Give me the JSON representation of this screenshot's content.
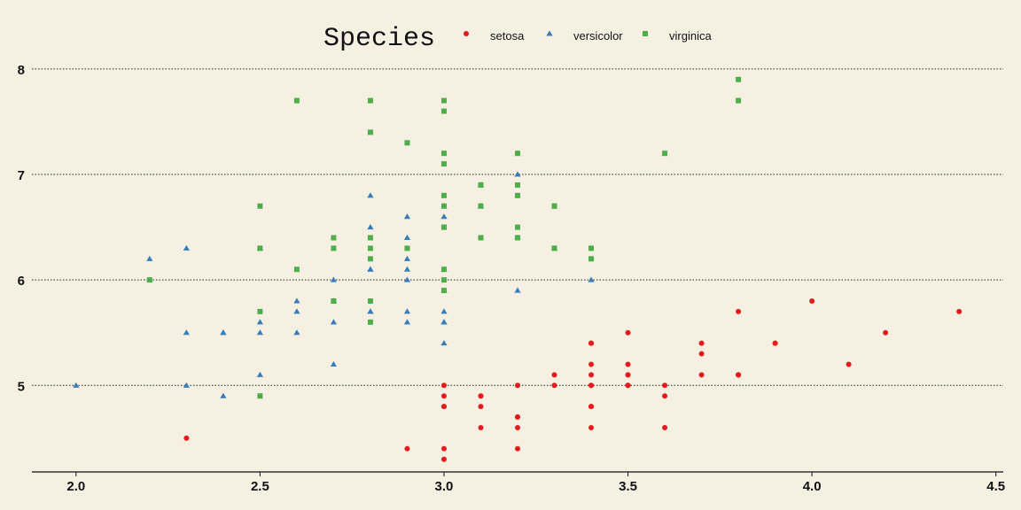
{
  "chart_data": {
    "type": "scatter",
    "legend": {
      "title": "Species",
      "position": "top",
      "entries": [
        {
          "name": "setosa",
          "color": "#e41a1c",
          "shape": "circle"
        },
        {
          "name": "versicolor",
          "color": "#377eb8",
          "shape": "triangle"
        },
        {
          "name": "virginica",
          "color": "#4daf4a",
          "shape": "square"
        }
      ]
    },
    "xlim": [
      1.88,
      4.52
    ],
    "ylim": [
      4.18,
      8.15
    ],
    "x_ticks": [
      "2.0",
      "2.5",
      "3.0",
      "3.5",
      "4.0",
      "4.5"
    ],
    "y_ticks": [
      "5",
      "6",
      "7",
      "8"
    ],
    "grid": {
      "horizontal": true,
      "style": "dotted"
    },
    "series": [
      {
        "name": "setosa",
        "points": [
          [
            3.5,
            5.1
          ],
          [
            3.0,
            4.9
          ],
          [
            3.2,
            4.7
          ],
          [
            3.1,
            4.6
          ],
          [
            3.6,
            5.0
          ],
          [
            3.9,
            5.4
          ],
          [
            3.4,
            4.6
          ],
          [
            3.4,
            5.0
          ],
          [
            2.9,
            4.4
          ],
          [
            3.1,
            4.9
          ],
          [
            3.7,
            5.4
          ],
          [
            3.4,
            4.8
          ],
          [
            3.0,
            4.8
          ],
          [
            3.0,
            4.3
          ],
          [
            4.0,
            5.8
          ],
          [
            4.4,
            5.7
          ],
          [
            3.9,
            5.4
          ],
          [
            3.5,
            5.1
          ],
          [
            3.8,
            5.7
          ],
          [
            3.8,
            5.1
          ],
          [
            3.4,
            5.4
          ],
          [
            3.7,
            5.1
          ],
          [
            3.6,
            4.6
          ],
          [
            3.3,
            5.1
          ],
          [
            3.4,
            4.8
          ],
          [
            3.0,
            5.0
          ],
          [
            3.4,
            5.0
          ],
          [
            3.5,
            5.2
          ],
          [
            3.4,
            5.2
          ],
          [
            3.2,
            4.7
          ],
          [
            3.1,
            4.8
          ],
          [
            3.4,
            5.4
          ],
          [
            4.1,
            5.2
          ],
          [
            4.2,
            5.5
          ],
          [
            3.1,
            4.9
          ],
          [
            3.2,
            5.0
          ],
          [
            3.5,
            5.5
          ],
          [
            3.6,
            4.9
          ],
          [
            3.0,
            4.4
          ],
          [
            3.4,
            5.1
          ],
          [
            3.5,
            5.0
          ],
          [
            2.3,
            4.5
          ],
          [
            3.2,
            4.4
          ],
          [
            3.5,
            5.0
          ],
          [
            3.8,
            5.1
          ],
          [
            3.0,
            4.8
          ],
          [
            3.8,
            5.1
          ],
          [
            3.2,
            4.6
          ],
          [
            3.7,
            5.3
          ],
          [
            3.3,
            5.0
          ]
        ]
      },
      {
        "name": "versicolor",
        "points": [
          [
            3.2,
            7.0
          ],
          [
            3.2,
            6.4
          ],
          [
            3.1,
            6.9
          ],
          [
            2.3,
            5.5
          ],
          [
            2.8,
            6.5
          ],
          [
            2.8,
            5.7
          ],
          [
            3.3,
            6.3
          ],
          [
            2.4,
            4.9
          ],
          [
            2.9,
            6.6
          ],
          [
            2.7,
            5.2
          ],
          [
            2.0,
            5.0
          ],
          [
            3.0,
            5.9
          ],
          [
            2.2,
            6.0
          ],
          [
            2.9,
            6.1
          ],
          [
            2.9,
            5.6
          ],
          [
            3.1,
            6.7
          ],
          [
            3.0,
            5.6
          ],
          [
            2.7,
            5.8
          ],
          [
            2.2,
            6.2
          ],
          [
            2.5,
            5.6
          ],
          [
            3.2,
            5.9
          ],
          [
            2.8,
            6.1
          ],
          [
            2.5,
            6.3
          ],
          [
            2.8,
            6.1
          ],
          [
            2.9,
            6.4
          ],
          [
            3.0,
            6.6
          ],
          [
            2.8,
            6.8
          ],
          [
            3.0,
            6.7
          ],
          [
            2.9,
            6.0
          ],
          [
            2.6,
            5.7
          ],
          [
            2.4,
            5.5
          ],
          [
            2.4,
            5.5
          ],
          [
            2.7,
            5.8
          ],
          [
            2.7,
            6.0
          ],
          [
            3.0,
            5.4
          ],
          [
            3.4,
            6.0
          ],
          [
            3.1,
            6.7
          ],
          [
            2.3,
            6.3
          ],
          [
            3.0,
            5.6
          ],
          [
            2.5,
            5.5
          ],
          [
            2.6,
            5.5
          ],
          [
            3.0,
            6.1
          ],
          [
            2.6,
            5.8
          ],
          [
            2.3,
            5.0
          ],
          [
            2.7,
            5.6
          ],
          [
            3.0,
            5.7
          ],
          [
            2.9,
            5.7
          ],
          [
            2.9,
            6.2
          ],
          [
            2.5,
            5.1
          ],
          [
            2.8,
            5.7
          ]
        ]
      },
      {
        "name": "virginica",
        "points": [
          [
            3.3,
            6.3
          ],
          [
            2.7,
            5.8
          ],
          [
            3.0,
            7.1
          ],
          [
            2.9,
            6.3
          ],
          [
            3.0,
            6.5
          ],
          [
            3.0,
            7.6
          ],
          [
            2.5,
            4.9
          ],
          [
            2.9,
            7.3
          ],
          [
            2.5,
            6.7
          ],
          [
            3.6,
            7.2
          ],
          [
            3.2,
            6.5
          ],
          [
            2.7,
            6.4
          ],
          [
            3.0,
            6.8
          ],
          [
            2.5,
            5.7
          ],
          [
            2.8,
            5.8
          ],
          [
            3.2,
            6.4
          ],
          [
            3.0,
            6.5
          ],
          [
            3.8,
            7.7
          ],
          [
            2.6,
            7.7
          ],
          [
            2.2,
            6.0
          ],
          [
            3.2,
            6.9
          ],
          [
            2.8,
            5.6
          ],
          [
            2.8,
            7.7
          ],
          [
            2.7,
            6.3
          ],
          [
            3.3,
            6.7
          ],
          [
            3.2,
            7.2
          ],
          [
            2.8,
            6.2
          ],
          [
            3.0,
            6.1
          ],
          [
            2.8,
            6.4
          ],
          [
            3.0,
            7.2
          ],
          [
            2.8,
            7.4
          ],
          [
            3.8,
            7.9
          ],
          [
            2.8,
            6.4
          ],
          [
            2.8,
            6.3
          ],
          [
            2.6,
            6.1
          ],
          [
            3.0,
            7.7
          ],
          [
            3.4,
            6.3
          ],
          [
            3.1,
            6.4
          ],
          [
            3.0,
            6.0
          ],
          [
            3.1,
            6.9
          ],
          [
            3.1,
            6.7
          ],
          [
            3.1,
            6.9
          ],
          [
            2.7,
            5.8
          ],
          [
            3.2,
            6.8
          ],
          [
            3.3,
            6.7
          ],
          [
            3.0,
            6.7
          ],
          [
            2.5,
            6.3
          ],
          [
            3.0,
            6.5
          ],
          [
            3.4,
            6.2
          ],
          [
            3.0,
            5.9
          ]
        ]
      }
    ]
  }
}
